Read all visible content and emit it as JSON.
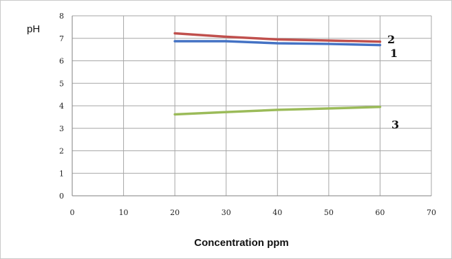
{
  "chart_data": {
    "type": "line",
    "title": "",
    "xlabel": "Concentration ppm",
    "ylabel": "pH",
    "xlim": [
      0,
      70
    ],
    "ylim": [
      0,
      8
    ],
    "xticks": [
      0,
      10,
      20,
      30,
      40,
      50,
      60,
      70
    ],
    "yticks": [
      0,
      1,
      2,
      3,
      4,
      5,
      6,
      7,
      8
    ],
    "grid": true,
    "series": [
      {
        "name": "1",
        "color": "#4472c4",
        "x": [
          20,
          30,
          40,
          50,
          60
        ],
        "y": [
          6.87,
          6.87,
          6.78,
          6.75,
          6.7
        ]
      },
      {
        "name": "2",
        "color": "#c0504d",
        "x": [
          20,
          30,
          40,
          50,
          60
        ],
        "y": [
          7.22,
          7.07,
          6.95,
          6.9,
          6.85
        ]
      },
      {
        "name": "3",
        "color": "#9bbb59",
        "x": [
          20,
          30,
          40,
          50,
          60
        ],
        "y": [
          3.62,
          3.72,
          3.82,
          3.88,
          3.95
        ]
      }
    ]
  }
}
